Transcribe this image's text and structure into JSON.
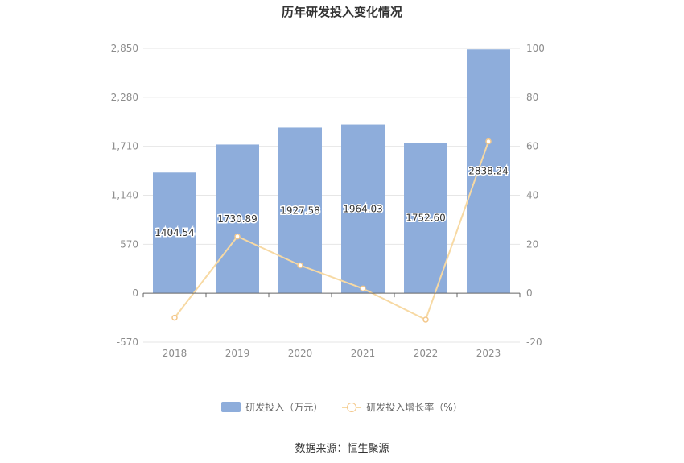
{
  "chart_data": {
    "type": "bar",
    "title": "历年研发投入变化情况",
    "categories": [
      "2018",
      "2019",
      "2020",
      "2021",
      "2022",
      "2023"
    ],
    "series": [
      {
        "name": "研发投入（万元）",
        "type": "bar",
        "axis": "left",
        "values": [
          1404.54,
          1730.89,
          1927.58,
          1964.03,
          1752.6,
          2838.24
        ],
        "labels": [
          "1404.54",
          "1730.89",
          "1927.58",
          "1964.03",
          "1752.60",
          "2838.24"
        ],
        "color": "#8eaddb"
      },
      {
        "name": "研发投入增长率（%）",
        "type": "line",
        "axis": "right",
        "values": [
          -10,
          23.2,
          11.4,
          1.9,
          -10.8,
          62
        ],
        "color": "#f7d9a3"
      }
    ],
    "y_left": {
      "min": -570,
      "max": 2850,
      "ticks": [
        -570,
        0,
        570,
        1140,
        1710,
        2280,
        2850
      ],
      "tick_labels": [
        "-570",
        "0",
        "570",
        "1,140",
        "1,710",
        "2,280",
        "2,850"
      ]
    },
    "y_right": {
      "min": -20,
      "max": 100,
      "ticks": [
        -20,
        0,
        20,
        40,
        60,
        80,
        100
      ],
      "tick_labels": [
        "-20",
        "0",
        "20",
        "40",
        "60",
        "80",
        "100"
      ]
    },
    "grid": true,
    "legend_position": "bottom"
  },
  "legend": {
    "bar_label": "研发投入（万元）",
    "line_label": "研发投入增长率（%）"
  },
  "source": "数据来源：恒生聚源"
}
